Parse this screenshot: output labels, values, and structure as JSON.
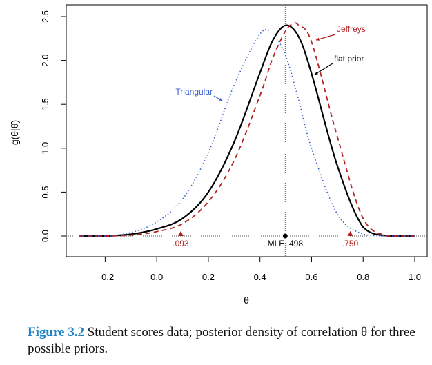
{
  "chart_data": {
    "type": "line",
    "xlabel": "θ",
    "ylabel": "g(θ|θ̂)",
    "xlim": [
      -0.3,
      1.0
    ],
    "ylim": [
      0.0,
      2.5
    ],
    "xticks": [
      -0.2,
      0.0,
      0.2,
      0.4,
      0.6,
      0.8,
      1.0
    ],
    "xtick_labels": [
      "−0.2",
      "0.0",
      "0.2",
      "0.4",
      "0.6",
      "0.8",
      "1.0"
    ],
    "yticks": [
      0.0,
      0.5,
      1.0,
      1.5,
      2.0,
      2.5
    ],
    "ytick_labels": [
      "0.0",
      "0.5",
      "1.0",
      "1.5",
      "2.0",
      "2.5"
    ],
    "grid": false,
    "series": [
      {
        "name": "flat prior",
        "color": "#000000",
        "style": "solid",
        "x": [
          -0.3,
          -0.2,
          -0.1,
          0.0,
          0.1,
          0.2,
          0.3,
          0.4,
          0.45,
          0.5,
          0.55,
          0.6,
          0.7,
          0.8,
          0.9,
          1.0
        ],
        "y": [
          0.0,
          0.0,
          0.02,
          0.08,
          0.2,
          0.5,
          1.07,
          1.86,
          2.23,
          2.4,
          2.27,
          1.85,
          0.8,
          0.1,
          0.0,
          0.0
        ]
      },
      {
        "name": "Jeffreys",
        "color": "#b22222",
        "style": "dashed",
        "x": [
          -0.3,
          -0.2,
          -0.1,
          0.0,
          0.1,
          0.2,
          0.3,
          0.4,
          0.45,
          0.5,
          0.53,
          0.55,
          0.6,
          0.7,
          0.8,
          0.9,
          1.0
        ],
        "y": [
          0.0,
          0.0,
          0.01,
          0.05,
          0.14,
          0.39,
          0.86,
          1.6,
          2.03,
          2.34,
          2.42,
          2.4,
          2.21,
          1.13,
          0.2,
          0.0,
          0.0
        ]
      },
      {
        "name": "Triangular",
        "color": "#3c5fd4",
        "style": "dotted",
        "x": [
          -0.3,
          -0.2,
          -0.1,
          0.0,
          0.1,
          0.2,
          0.3,
          0.4,
          0.45,
          0.5,
          0.55,
          0.6,
          0.7,
          0.8,
          0.9,
          1.0
        ],
        "y": [
          0.0,
          0.0,
          0.04,
          0.16,
          0.42,
          0.95,
          1.72,
          2.3,
          2.3,
          2.05,
          1.55,
          1.0,
          0.25,
          0.02,
          0.0,
          0.0
        ]
      }
    ],
    "reference_line": {
      "x": 0.498,
      "style": "dotted",
      "color": "#555555"
    },
    "markers": [
      {
        "x": 0.093,
        "label": ".093",
        "shape": "triangle",
        "color": "#b22222"
      },
      {
        "x": 0.498,
        "label": "MLE .498",
        "shape": "dot",
        "color": "#000000"
      },
      {
        "x": 0.75,
        "label": ".750",
        "shape": "triangle",
        "color": "#b22222"
      }
    ],
    "annotations": [
      {
        "text": "Jeffreys",
        "color": "#b22222"
      },
      {
        "text": "flat prior",
        "color": "#000000"
      },
      {
        "text": "Triangular",
        "color": "#3c5fd4"
      }
    ]
  },
  "caption": {
    "figure_label": "Figure 3.2",
    "text": " Student scores data; posterior density of correlation θ for three possible priors."
  }
}
